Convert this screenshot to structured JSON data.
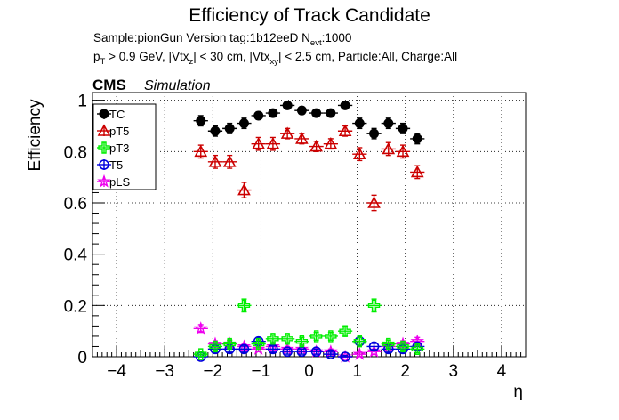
{
  "header": {
    "title": "Efficiency of Track Candidate",
    "sample_line_a": "Sample:pionGun   Version tag:1b12eeD  N",
    "sample_line_sub": "evt",
    "sample_line_b": ":1000",
    "cuts_parts": [
      {
        "t": "p",
        "sub": false
      },
      {
        "t": "T",
        "sub": true
      },
      {
        "t": " > 0.9 GeV, |Vtx",
        "sub": false
      },
      {
        "t": "z",
        "sub": true
      },
      {
        "t": "| < 30 cm, |Vtx",
        "sub": false
      },
      {
        "t": "xy",
        "sub": true
      },
      {
        "t": "| < 2.5 cm, Particle:All, Charge:All",
        "sub": false
      }
    ],
    "cms_label": "CMS",
    "simulation_label": "Simulation"
  },
  "chart_data": {
    "type": "scatter",
    "title": "Efficiency of Track Candidate",
    "xlabel": "η",
    "ylabel": "Efficiency",
    "xlim": [
      -4.5,
      4.5
    ],
    "ylim": [
      0,
      1.03
    ],
    "x_ticks": [
      -4,
      -3,
      -2,
      -1,
      0,
      1,
      2,
      3,
      4
    ],
    "x_tick_labels": [
      "−4",
      "−3",
      "−2",
      "−1",
      "0",
      "1",
      "2",
      "3",
      "4"
    ],
    "y_ticks": [
      0,
      0.2,
      0.4,
      0.6,
      0.8,
      1
    ],
    "y_tick_labels": [
      "0",
      "0.2",
      "0.4",
      "0.6",
      "0.8",
      "1"
    ],
    "grid": true,
    "legend_position": "top-left",
    "x": [
      -2.25,
      -1.95,
      -1.65,
      -1.35,
      -1.05,
      -0.75,
      -0.45,
      -0.15,
      0.15,
      0.45,
      0.75,
      1.05,
      1.35,
      1.65,
      1.95,
      2.25
    ],
    "x_bin_halfwidth": 0.15,
    "series": [
      {
        "name": "TC",
        "color": "#000000",
        "marker": "filled-circle",
        "values": [
          0.92,
          0.88,
          0.89,
          0.91,
          0.94,
          0.95,
          0.98,
          0.96,
          0.95,
          0.95,
          0.98,
          0.91,
          0.87,
          0.91,
          0.89,
          0.85
        ],
        "err": [
          0.02,
          0.02,
          0.02,
          0.02,
          0.015,
          0.015,
          0.01,
          0.01,
          0.01,
          0.01,
          0.01,
          0.02,
          0.02,
          0.02,
          0.02,
          0.02
        ]
      },
      {
        "name": "pT5",
        "color": "#cc0000",
        "marker": "open-triangle",
        "values": [
          0.8,
          0.76,
          0.76,
          0.65,
          0.83,
          0.83,
          0.87,
          0.85,
          0.82,
          0.83,
          0.88,
          0.79,
          0.6,
          0.81,
          0.8,
          0.72
        ],
        "err": [
          0.025,
          0.025,
          0.025,
          0.03,
          0.025,
          0.025,
          0.02,
          0.02,
          0.02,
          0.02,
          0.02,
          0.025,
          0.03,
          0.025,
          0.025,
          0.025
        ]
      },
      {
        "name": "pT3",
        "color": "#00ee00",
        "marker": "open-cross",
        "values": [
          0.01,
          0.04,
          0.05,
          0.2,
          0.05,
          0.07,
          0.07,
          0.06,
          0.08,
          0.08,
          0.1,
          0.06,
          0.2,
          0.05,
          0.04,
          0.03
        ],
        "err": [
          0.01,
          0.015,
          0.015,
          0.025,
          0.015,
          0.015,
          0.015,
          0.015,
          0.015,
          0.015,
          0.02,
          0.015,
          0.025,
          0.015,
          0.015,
          0.015
        ]
      },
      {
        "name": "T5",
        "color": "#0000dd",
        "marker": "open-circle",
        "values": [
          0.0,
          0.03,
          0.03,
          0.03,
          0.06,
          0.03,
          0.02,
          0.02,
          0.02,
          0.01,
          0.0,
          0.06,
          0.04,
          0.03,
          0.03,
          0.04
        ],
        "err": [
          0.008,
          0.012,
          0.012,
          0.012,
          0.015,
          0.012,
          0.01,
          0.01,
          0.01,
          0.008,
          0.005,
          0.015,
          0.012,
          0.012,
          0.012,
          0.012
        ]
      },
      {
        "name": "pLS",
        "color": "#ee00ee",
        "marker": "open-star",
        "values": [
          0.11,
          0.05,
          0.05,
          0.04,
          0.03,
          0.04,
          0.03,
          0.03,
          0.02,
          0.02,
          0.0,
          0.01,
          0.02,
          0.04,
          0.05,
          0.06
        ],
        "err": [
          0.015,
          0.012,
          0.012,
          0.012,
          0.01,
          0.012,
          0.01,
          0.01,
          0.01,
          0.01,
          0.005,
          0.008,
          0.01,
          0.012,
          0.012,
          0.015
        ]
      }
    ]
  }
}
